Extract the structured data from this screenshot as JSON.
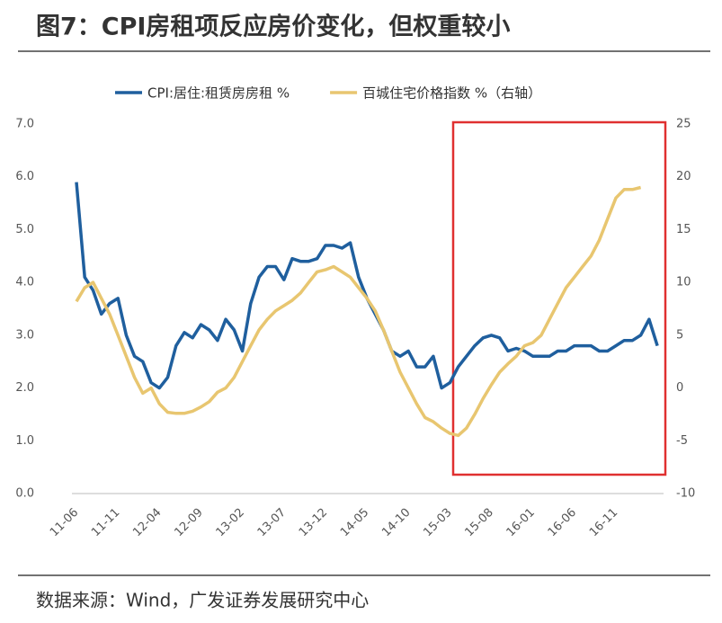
{
  "chart_data": {
    "type": "line",
    "title": "图7：CPI房租项反应房价变化，但权重较小",
    "source": "数据来源：Wind，广发证券发展研究中心",
    "categories": [
      "11-06",
      null,
      null,
      null,
      null,
      "11-11",
      null,
      null,
      null,
      null,
      "12-04",
      null,
      null,
      null,
      null,
      "12-09",
      null,
      null,
      null,
      null,
      "13-02",
      null,
      null,
      null,
      null,
      "13-07",
      null,
      null,
      null,
      null,
      "13-12",
      null,
      null,
      null,
      null,
      "14-05",
      null,
      null,
      null,
      null,
      "14-10",
      null,
      null,
      null,
      null,
      "15-03",
      null,
      null,
      null,
      null,
      "15-08",
      null,
      null,
      null,
      null,
      "16-01",
      null,
      null,
      null,
      null,
      "16-06",
      null,
      null,
      null,
      null,
      "16-11",
      null,
      null,
      null,
      null,
      null
    ],
    "series": [
      {
        "name": "CPI:居住:租赁房房租 %",
        "color": "#1f5f9e",
        "values": [
          5.9,
          4.1,
          3.85,
          3.4,
          3.6,
          3.7,
          3.0,
          2.6,
          2.5,
          2.1,
          2.0,
          2.2,
          2.8,
          3.05,
          2.95,
          3.2,
          3.1,
          2.9,
          3.3,
          3.1,
          2.7,
          3.6,
          4.1,
          4.3,
          4.3,
          4.05,
          4.45,
          4.4,
          4.4,
          4.45,
          4.7,
          4.7,
          4.65,
          4.75,
          4.1,
          3.7,
          3.4,
          3.1,
          2.7,
          2.6,
          2.7,
          2.4,
          2.4,
          2.6,
          2.0,
          2.1,
          2.4,
          2.6,
          2.8,
          2.95,
          3.0,
          2.95,
          2.7,
          2.75,
          2.7,
          2.6,
          2.6,
          2.6,
          2.7,
          2.7,
          2.8,
          2.8,
          2.8,
          2.7,
          2.7,
          2.8,
          2.9,
          2.9,
          3.0,
          3.3,
          2.8
        ]
      },
      {
        "name": "百城住宅价格指数 %（右轴）",
        "color": "#e8c670",
        "axis": "y2",
        "values": [
          8.2,
          9.5,
          10,
          8.5,
          7,
          5,
          3,
          1,
          -0.5,
          0,
          -1.5,
          -2.3,
          -2.4,
          -2.4,
          -2.2,
          -1.8,
          -1.3,
          -0.4,
          0,
          1,
          2.5,
          4,
          5.5,
          6.5,
          7.3,
          7.8,
          8.3,
          9,
          10,
          11,
          11.2,
          11.5,
          11,
          10.5,
          9.5,
          8.5,
          7.3,
          5.5,
          3.5,
          1.5,
          0,
          -1.5,
          -2.8,
          -3.2,
          -3.8,
          -4.3,
          -4.5,
          -3.8,
          -2.5,
          -1,
          0.3,
          1.5,
          2.3,
          3,
          4,
          4.3,
          5,
          6.5,
          8,
          9.5,
          10.5,
          11.5,
          12.5,
          14,
          16,
          18,
          18.8,
          18.8,
          19,
          null,
          null
        ]
      }
    ],
    "ylim": [
      0,
      7
    ],
    "yticks": [
      {
        "value": 0,
        "label": "0.0"
      },
      {
        "value": 1,
        "label": "1.0"
      },
      {
        "value": 2,
        "label": "2.0"
      },
      {
        "value": 3,
        "label": "3.0"
      },
      {
        "value": 4,
        "label": "4.0"
      },
      {
        "value": 5,
        "label": "5.0"
      },
      {
        "value": 6,
        "label": "6.0"
      },
      {
        "value": 7,
        "label": "7.0"
      }
    ],
    "y2lim": [
      -10,
      25
    ],
    "y2ticks": [
      -10,
      -5,
      0,
      5,
      10,
      15,
      20,
      25
    ],
    "grid": false,
    "legend": "top"
  }
}
